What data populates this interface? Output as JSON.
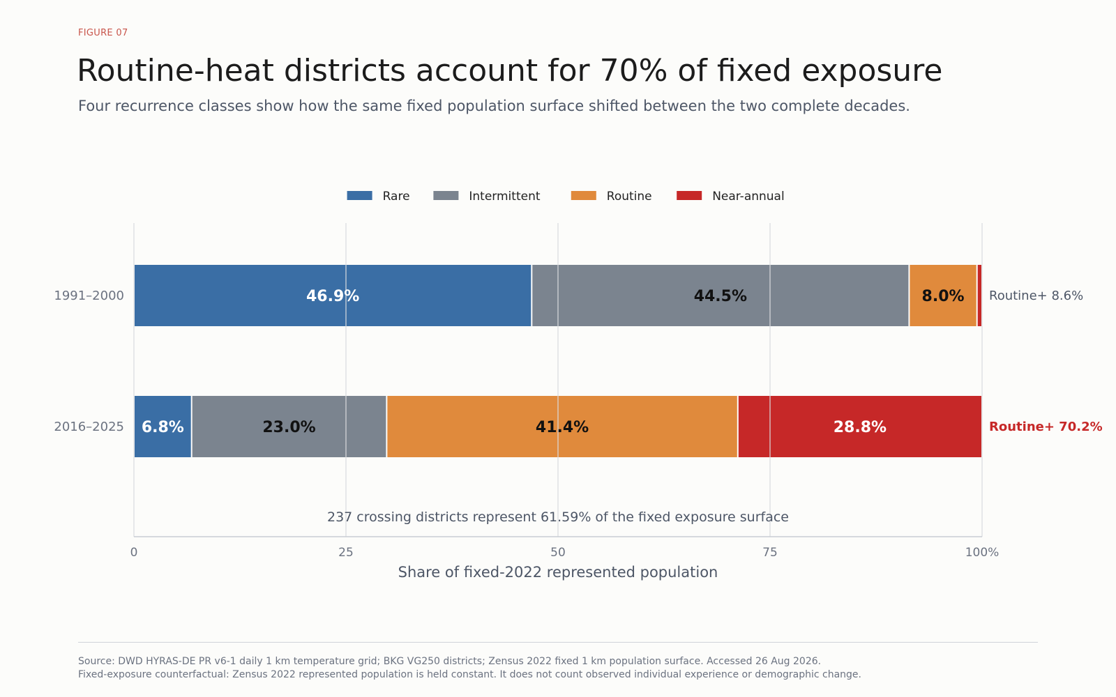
{
  "figure_label": "FIGURE 07",
  "title": "Routine-heat districts account for 70% of fixed exposure",
  "subtitle": "Four recurrence classes show how the same fixed population surface shifted between the two complete decades.",
  "source_line1": "Source: DWD HYRAS-DE PR v6-1 daily 1 km temperature grid; BKG VG250 districts; Zensus 2022 fixed 1 km population surface. Accessed 26 Aug 2026.",
  "source_line2": "Fixed-exposure counterfactual: Zensus 2022 represented population is held constant. It does not count observed individual experience or demographic change.",
  "chart_data": {
    "type": "bar",
    "orientation": "horizontal",
    "stacked": true,
    "categories": [
      "1991–2000",
      "2016–2025"
    ],
    "series": [
      {
        "name": "Rare",
        "color": "#3a6ea5",
        "label_color": "#ffffff",
        "values": [
          46.9,
          6.8
        ],
        "labels": [
          "46.9%",
          "6.8%"
        ]
      },
      {
        "name": "Intermittent",
        "color": "#7b848f",
        "label_color": "#111111",
        "values": [
          44.5,
          23.0
        ],
        "labels": [
          "44.5%",
          "23.0%"
        ]
      },
      {
        "name": "Routine",
        "color": "#e08a3c",
        "label_color": "#111111",
        "values": [
          8.0,
          41.4
        ],
        "labels": [
          "8.0%",
          "41.4%"
        ]
      },
      {
        "name": "Near-annual",
        "color": "#c62828",
        "label_color": "#ffffff",
        "values": [
          0.6,
          28.8
        ],
        "labels": [
          "",
          "28.8%"
        ]
      }
    ],
    "totals": [
      {
        "prefix": "Routine+",
        "value": "8.6%",
        "color": "#4d5666",
        "bold": false
      },
      {
        "prefix": "Routine+",
        "value": "70.2%",
        "color": "#c62828",
        "bold": true
      }
    ],
    "xlim": [
      0,
      100
    ],
    "xticks": [
      "0",
      "25",
      "50",
      "75",
      "100%"
    ],
    "xtick_values": [
      0,
      25,
      50,
      75,
      100
    ],
    "xlabel": "Share of fixed-2022 represented population",
    "annotation": "237 crossing districts represent 61.59% of the fixed exposure surface",
    "legend_position": "top-center",
    "grid": true
  }
}
